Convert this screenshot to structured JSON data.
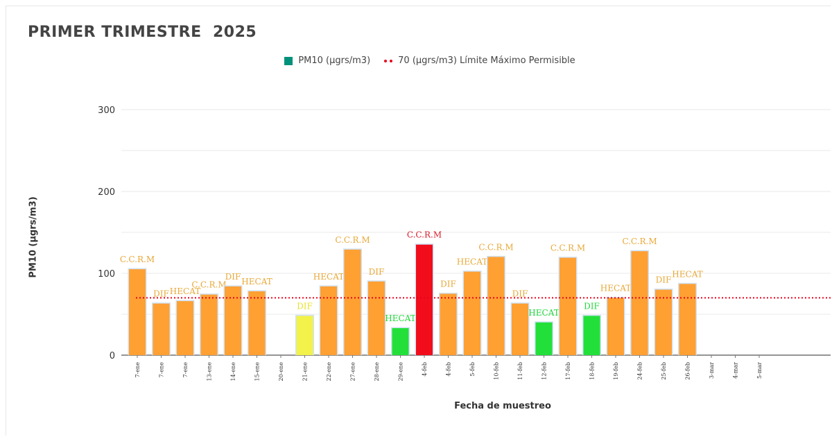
{
  "chart_data": {
    "type": "bar",
    "title": "PRIMER TRIMESTRE  2025",
    "xlabel": "Fecha de muestreo",
    "ylabel": "PM10 (µgrs/m3)",
    "ylim": [
      0,
      300
    ],
    "yticks": [
      0,
      100,
      200,
      300
    ],
    "grid": true,
    "legend_position": "top-center",
    "series": [
      {
        "name": "PM10 (µgrs/m3)",
        "color": "#00917a",
        "points": [
          {
            "date": "7-ene",
            "value": 105,
            "station": "C.C.R.M",
            "color": "#ffa033",
            "label_color": "#e8a838"
          },
          {
            "date": "7-ene",
            "value": 63,
            "station": "DIF",
            "color": "#ffa033",
            "label_color": "#e8a838"
          },
          {
            "date": "7-ene",
            "value": 66,
            "station": "HECAT",
            "color": "#ffa033",
            "label_color": "#e8a838"
          },
          {
            "date": "13-ene",
            "value": 74,
            "station": "C.C.R.M",
            "color": "#ffa033",
            "label_color": "#e8a838"
          },
          {
            "date": "14-ene",
            "value": 84,
            "station": "DIF",
            "color": "#ffa033",
            "label_color": "#e8a838"
          },
          {
            "date": "15-ene",
            "value": 78,
            "station": "HECAT",
            "color": "#ffa033",
            "label_color": "#e8a838"
          },
          {
            "date": "20-ene",
            "value": null,
            "station": "",
            "color": "#ffa033",
            "label_color": "#e8a838"
          },
          {
            "date": "21-ene",
            "value": 48,
            "station": "DIF",
            "color": "#f2f24a",
            "label_color": "#e8e02c"
          },
          {
            "date": "22-ene",
            "value": 84,
            "station": "HECAT",
            "color": "#ffa033",
            "label_color": "#e8a838"
          },
          {
            "date": "27-ene",
            "value": 129,
            "station": "C.C.R.M",
            "color": "#ffa033",
            "label_color": "#e8a838"
          },
          {
            "date": "28-ene",
            "value": 90,
            "station": "DIF",
            "color": "#ffa033",
            "label_color": "#e8a838"
          },
          {
            "date": "29-ene",
            "value": 33,
            "station": "HECAT",
            "color": "#22e039",
            "label_color": "#1fd83a"
          },
          {
            "date": "4-feb",
            "value": 135,
            "station": "C.C.R.M",
            "color": "#f20d1c",
            "label_color": "#d81e2c"
          },
          {
            "date": "4-feb",
            "value": 75,
            "station": "DIF",
            "color": "#ffa033",
            "label_color": "#e8a838"
          },
          {
            "date": "5-feb",
            "value": 102,
            "station": "HECAT",
            "color": "#ffa033",
            "label_color": "#e8a838"
          },
          {
            "date": "10-feb",
            "value": 120,
            "station": "C.C.R.M",
            "color": "#ffa033",
            "label_color": "#e8a838"
          },
          {
            "date": "11-feb",
            "value": 63,
            "station": "DIF",
            "color": "#ffa033",
            "label_color": "#e8a838"
          },
          {
            "date": "12-feb",
            "value": 40,
            "station": "HECAT",
            "color": "#22e039",
            "label_color": "#1fd83a"
          },
          {
            "date": "17-feb",
            "value": 119,
            "station": "C.C.R.M",
            "color": "#ffa033",
            "label_color": "#e8a838"
          },
          {
            "date": "18-feb",
            "value": 48,
            "station": "DIF",
            "color": "#22e039",
            "label_color": "#1fd83a"
          },
          {
            "date": "19-feb",
            "value": 70,
            "station": "HECAT",
            "color": "#ffa033",
            "label_color": "#e8a838"
          },
          {
            "date": "24-feb",
            "value": 127,
            "station": "C.C.R.M",
            "color": "#ffa033",
            "label_color": "#e8a838"
          },
          {
            "date": "25-feb",
            "value": 80,
            "station": "DIF",
            "color": "#ffa033",
            "label_color": "#e8a838"
          },
          {
            "date": "26-feb",
            "value": 87,
            "station": "HECAT",
            "color": "#ffa033",
            "label_color": "#e8a838"
          },
          {
            "date": "3-mar",
            "value": null,
            "station": "",
            "color": "#ffa033",
            "label_color": "#e8a838"
          },
          {
            "date": "4-mar",
            "value": null,
            "station": "",
            "color": "#ffa033",
            "label_color": "#e8a838"
          },
          {
            "date": "5-mar",
            "value": null,
            "station": "",
            "color": "#ffa033",
            "label_color": "#e8a838"
          }
        ]
      }
    ],
    "limit": {
      "name": "70 (µgrs/m3) Límite Máximo Permisible",
      "value": 70,
      "color": "#e8001c",
      "style": "dotted"
    }
  }
}
